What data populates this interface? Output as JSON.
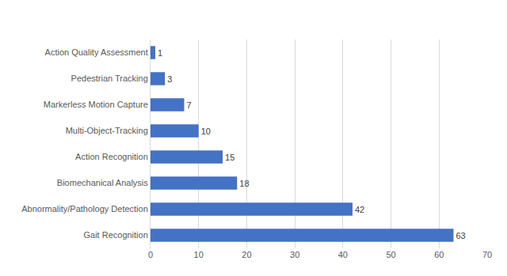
{
  "chart_data": {
    "type": "bar",
    "orientation": "horizontal",
    "categories": [
      "Gait Recognition",
      "Abnormality/Pathology Detection",
      "Biomechanical Analysis",
      "Action Recognition",
      "Multi-Object-Tracking",
      "Markerless Motion Capture",
      "Pedestrian Tracking",
      "Action Quality Assessment"
    ],
    "values": [
      63,
      42,
      18,
      15,
      10,
      7,
      3,
      1
    ],
    "color": "#4472c4",
    "xlim": [
      0,
      70
    ],
    "xticks": [
      0,
      10,
      20,
      30,
      40,
      50,
      60,
      70
    ],
    "grid": true,
    "data_labels": true
  }
}
